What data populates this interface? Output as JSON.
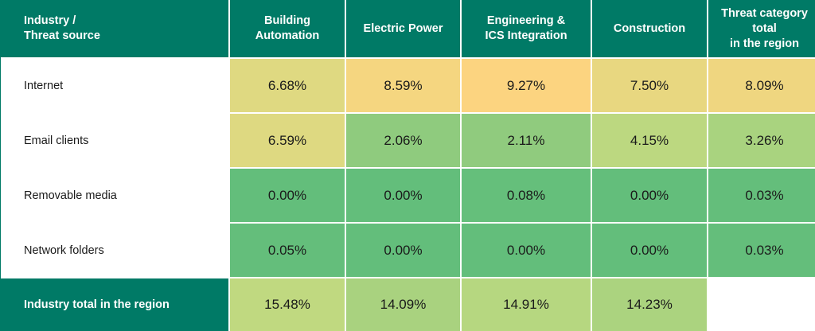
{
  "chart_data": {
    "type": "table",
    "corner_label": "Industry /\nThreat source",
    "columns": [
      "Building\nAutomation",
      "Electric Power",
      "Engineering &\nICS Integration",
      "Construction",
      "Threat category\ntotal\nin the region"
    ],
    "rows": [
      {
        "label": "Internet",
        "values": [
          "6.68%",
          "8.59%",
          "9.27%",
          "7.50%",
          "8.09%"
        ]
      },
      {
        "label": "Email clients",
        "values": [
          "6.59%",
          "2.06%",
          "2.11%",
          "4.15%",
          "3.26%"
        ]
      },
      {
        "label": "Removable media",
        "values": [
          "0.00%",
          "0.00%",
          "0.08%",
          "0.00%",
          "0.03%"
        ]
      },
      {
        "label": "Network folders",
        "values": [
          "0.05%",
          "0.00%",
          "0.00%",
          "0.00%",
          "0.03%"
        ]
      }
    ],
    "total_row": {
      "label": "Industry total in the region",
      "values": [
        "15.48%",
        "14.09%",
        "14.91%",
        "14.23%",
        ""
      ]
    }
  },
  "colors": {
    "header_bg": "#007a66",
    "scale_low": "#63be7b",
    "scale_mid": "#c9dc81",
    "scale_high": "#ffd480"
  }
}
